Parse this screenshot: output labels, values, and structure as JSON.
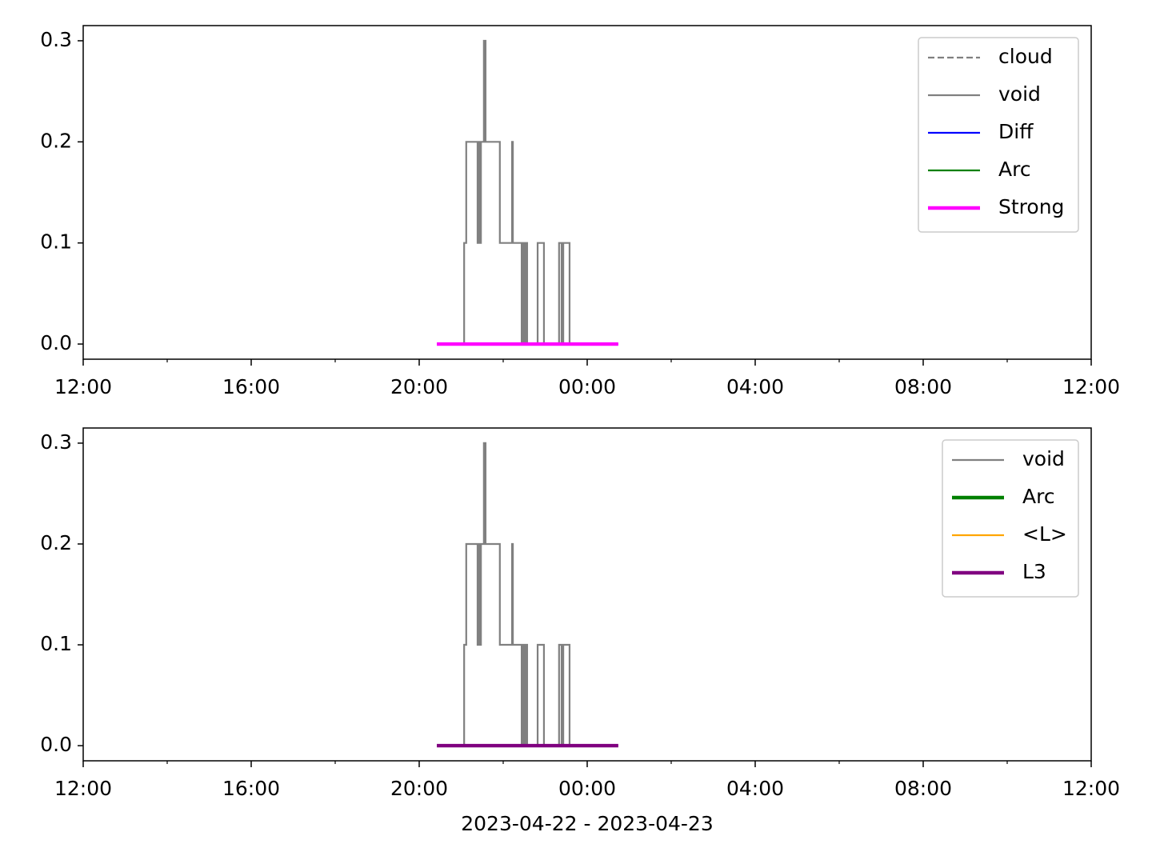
{
  "chart_data": [
    {
      "type": "line",
      "xlim": [
        12,
        36
      ],
      "xticks": [
        {
          "value": 12,
          "label": "12:00"
        },
        {
          "value": 16,
          "label": "16:00"
        },
        {
          "value": 20,
          "label": "20:00"
        },
        {
          "value": 24,
          "label": "00:00"
        },
        {
          "value": 28,
          "label": "04:00"
        },
        {
          "value": 32,
          "label": "08:00"
        },
        {
          "value": 36,
          "label": "12:00"
        }
      ],
      "xminorticks": [
        14,
        18,
        22,
        26,
        30,
        34
      ],
      "ylim": [
        -0.015,
        0.315
      ],
      "yticks": [
        {
          "value": 0,
          "label": "0.0"
        },
        0.1,
        0.2,
        0.3
      ],
      "legend": "upper right",
      "series": [
        {
          "name": "cloud",
          "color": "#808080",
          "dash": "dashed",
          "linewidth": 1,
          "x": [],
          "values": []
        },
        {
          "name": "void",
          "color": "#808080",
          "linewidth": 1,
          "x": [
            20.42,
            21.07,
            21.07,
            21.12,
            21.12,
            21.39,
            21.39,
            21.43,
            21.43,
            21.45,
            21.45,
            21.47,
            21.47,
            21.54,
            21.54,
            21.58,
            21.58,
            21.92,
            21.92,
            22.21,
            22.21,
            22.23,
            22.23,
            22.44,
            22.44,
            22.48,
            22.48,
            22.51,
            22.51,
            22.55,
            22.55,
            22.57,
            22.57,
            22.82,
            22.82,
            22.97,
            22.97,
            23.33,
            23.33,
            23.39,
            23.39,
            23.43,
            23.43,
            23.58,
            23.58,
            24.74
          ],
          "values": [
            0,
            0,
            0.1,
            0.1,
            0.2,
            0.2,
            0.1,
            0.1,
            0.2,
            0.2,
            0.1,
            0.1,
            0.2,
            0.2,
            0.3,
            0.3,
            0.2,
            0.2,
            0.1,
            0.1,
            0.2,
            0.2,
            0.1,
            0.1,
            0,
            0,
            0.1,
            0.1,
            0,
            0,
            0.1,
            0.1,
            0,
            0,
            0.1,
            0.1,
            0,
            0,
            0.1,
            0.1,
            0,
            0,
            0.1,
            0.1,
            0,
            0
          ]
        },
        {
          "name": "Diff",
          "color": "#0000ff",
          "linewidth": 1,
          "x": [],
          "values": []
        },
        {
          "name": "Arc",
          "color": "#008000",
          "linewidth": 1,
          "x": [],
          "values": []
        },
        {
          "name": "Strong",
          "color": "#ff00ff",
          "linewidth": 2,
          "x": [
            20.42,
            24.74
          ],
          "values": [
            0,
            0
          ]
        }
      ]
    },
    {
      "type": "line",
      "xlabel": "2023-04-22 - 2023-04-23",
      "xlim": [
        12,
        36
      ],
      "xticks": [
        {
          "value": 12,
          "label": "12:00"
        },
        {
          "value": 16,
          "label": "16:00"
        },
        {
          "value": 20,
          "label": "20:00"
        },
        {
          "value": 24,
          "label": "00:00"
        },
        {
          "value": 28,
          "label": "04:00"
        },
        {
          "value": 32,
          "label": "08:00"
        },
        {
          "value": 36,
          "label": "12:00"
        }
      ],
      "xminorticks": [
        14,
        18,
        22,
        26,
        30,
        34
      ],
      "ylim": [
        -0.015,
        0.315
      ],
      "yticks": [
        {
          "value": 0,
          "label": "0.0"
        },
        0.1,
        0.2,
        0.3
      ],
      "legend": "upper right",
      "series": [
        {
          "name": "void",
          "color": "#808080",
          "linewidth": 1,
          "x": [
            20.42,
            21.07,
            21.07,
            21.12,
            21.12,
            21.39,
            21.39,
            21.43,
            21.43,
            21.45,
            21.45,
            21.47,
            21.47,
            21.54,
            21.54,
            21.58,
            21.58,
            21.92,
            21.92,
            22.21,
            22.21,
            22.23,
            22.23,
            22.44,
            22.44,
            22.48,
            22.48,
            22.51,
            22.51,
            22.55,
            22.55,
            22.57,
            22.57,
            22.82,
            22.82,
            22.97,
            22.97,
            23.33,
            23.33,
            23.39,
            23.39,
            23.43,
            23.43,
            23.58,
            23.58,
            24.74
          ],
          "values": [
            0,
            0,
            0.1,
            0.1,
            0.2,
            0.2,
            0.1,
            0.1,
            0.2,
            0.2,
            0.1,
            0.1,
            0.2,
            0.2,
            0.3,
            0.3,
            0.2,
            0.2,
            0.1,
            0.1,
            0.2,
            0.2,
            0.1,
            0.1,
            0,
            0,
            0.1,
            0.1,
            0,
            0,
            0.1,
            0.1,
            0,
            0,
            0.1,
            0.1,
            0,
            0,
            0.1,
            0.1,
            0,
            0,
            0.1,
            0.1,
            0,
            0
          ]
        },
        {
          "name": "Arc",
          "color": "#008000",
          "linewidth": 2,
          "x": [],
          "values": []
        },
        {
          "name": "<L>",
          "color": "#ffa500",
          "linewidth": 1,
          "x": [],
          "values": []
        },
        {
          "name": "L3",
          "color": "#800080",
          "linewidth": 2,
          "x": [
            20.42,
            24.74
          ],
          "values": [
            0,
            0
          ]
        }
      ]
    }
  ]
}
